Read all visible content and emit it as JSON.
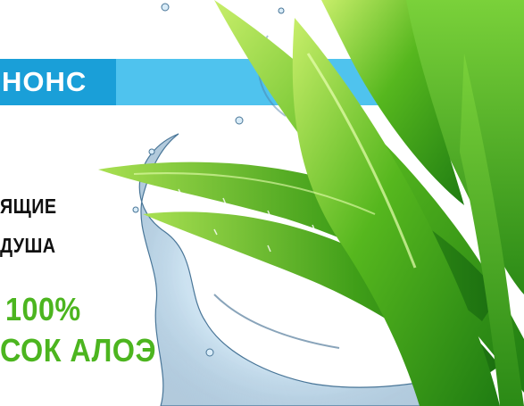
{
  "banner": {
    "label": "НОНС",
    "color": "#4fc3ee",
    "label_bg": "#1a9fd8"
  },
  "headline": {
    "line1": "ЯЩИЕ",
    "line2": "ДУША"
  },
  "product": {
    "percent": "100%",
    "name": "СОК АЛОЭ",
    "accent": "#4cb51f"
  },
  "illustration": {
    "leaf_icon": "aloe-leaves",
    "water_icon": "water-splash"
  }
}
